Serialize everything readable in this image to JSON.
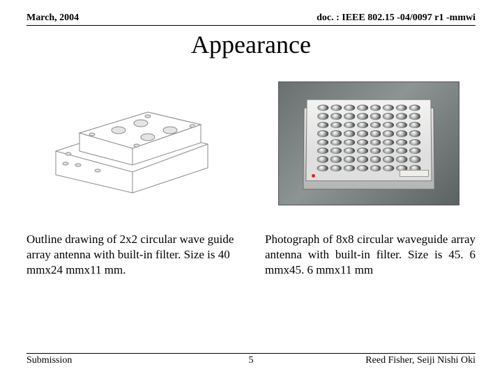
{
  "header": {
    "left": "March, 2004",
    "right": "doc. : IEEE 802.15 -04/0097 r1 -mmwi"
  },
  "title": "Appearance",
  "left_drawing": {
    "type": "isometric-outline",
    "stroke": "#8a8a8a",
    "fill": "#ffffff",
    "hole_fill": "#cfcfcf"
  },
  "right_photo": {
    "type": "photo-device",
    "background": "#6a7070",
    "device_color": "#e6e6e4",
    "grid": {
      "rows": 8,
      "cols": 8
    }
  },
  "captions": {
    "left": "Outline drawing of 2x2 circular wave guide array antenna with built-in filter.\nSize is 40 mmx24 mmx11 mm.",
    "right": "Photograph of 8x8 circular waveguide array antenna with built-in filter.\nSize is 45. 6 mmx45. 6 mmx11 mm"
  },
  "footer": {
    "left": "Submission",
    "page": "5",
    "right": "Reed Fisher, Seiji Nishi Oki"
  }
}
